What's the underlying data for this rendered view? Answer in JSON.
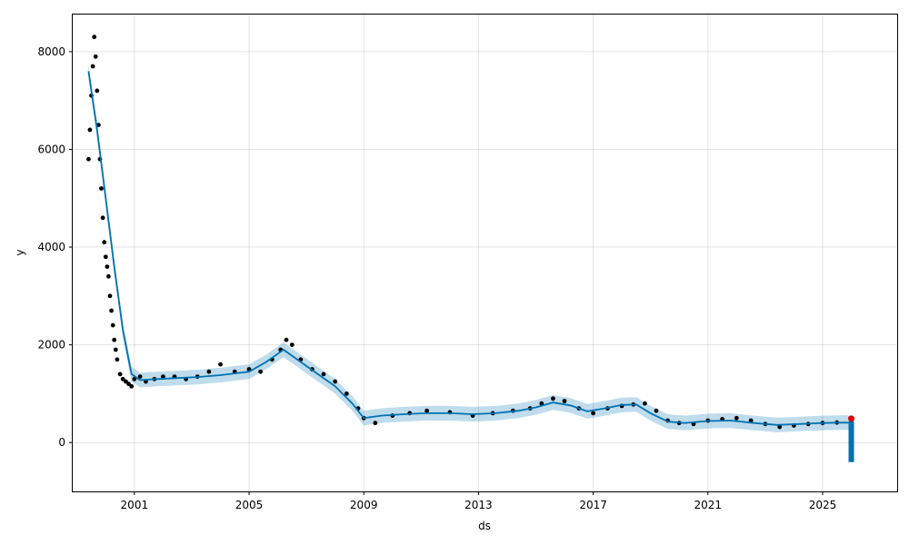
{
  "chart_data": {
    "type": "line",
    "title": "",
    "xlabel": "ds",
    "ylabel": "y",
    "x_tick_labels": [
      "2001",
      "2005",
      "2009",
      "2013",
      "2017",
      "2021",
      "2025"
    ],
    "x_ticks": [
      2001,
      2005,
      2009,
      2013,
      2017,
      2021,
      2025
    ],
    "y_tick_labels": [
      "0",
      "2000",
      "4000",
      "6000",
      "8000"
    ],
    "y_ticks": [
      0,
      2000,
      4000,
      6000,
      8000
    ],
    "xlim": [
      1998.85,
      2027.6
    ],
    "ylim": [
      -1000,
      8760
    ],
    "grid": true,
    "colors": {
      "observed": "#000000",
      "forecast": "#0072B2",
      "interval": "#0072B2",
      "highlight": "#e00000"
    },
    "series": [
      {
        "role": "observed",
        "style": "points",
        "x": [
          1999.4,
          1999.45,
          1999.5,
          1999.55,
          1999.6,
          1999.65,
          1999.7,
          1999.75,
          1999.8,
          1999.85,
          1999.9,
          1999.95,
          2000.0,
          2000.05,
          2000.1,
          2000.15,
          2000.2,
          2000.25,
          2000.3,
          2000.35,
          2000.4,
          2000.5,
          2000.6,
          2000.7,
          2000.8,
          2000.9,
          2001.0,
          2001.2,
          2001.4,
          2001.7,
          2002.0,
          2002.4,
          2002.8,
          2003.2,
          2003.6,
          2004.0,
          2004.5,
          2005.0,
          2005.4,
          2005.8,
          2006.1,
          2006.3,
          2006.5,
          2006.8,
          2007.2,
          2007.6,
          2008.0,
          2008.4,
          2008.8,
          2009.0,
          2009.4,
          2010.0,
          2010.6,
          2011.2,
          2012.0,
          2012.8,
          2013.5,
          2014.2,
          2014.8,
          2015.2,
          2015.6,
          2016.0,
          2016.5,
          2017.0,
          2017.5,
          2018.0,
          2018.4,
          2018.8,
          2019.2,
          2019.6,
          2020.0,
          2020.5,
          2021.0,
          2021.5,
          2022.0,
          2022.5,
          2023.0,
          2023.5,
          2024.0,
          2024.5,
          2025.0,
          2025.5,
          2026.0
        ],
        "y": [
          5800,
          6400,
          7100,
          7700,
          8300,
          7900,
          7200,
          6500,
          5800,
          5200,
          4600,
          4100,
          3800,
          3600,
          3400,
          3000,
          2700,
          2400,
          2100,
          1900,
          1700,
          1400,
          1300,
          1250,
          1200,
          1150,
          1300,
          1350,
          1250,
          1300,
          1350,
          1350,
          1300,
          1350,
          1450,
          1600,
          1450,
          1500,
          1450,
          1700,
          1900,
          2100,
          2000,
          1700,
          1500,
          1400,
          1250,
          1000,
          700,
          500,
          400,
          550,
          600,
          650,
          620,
          550,
          600,
          650,
          700,
          800,
          900,
          850,
          700,
          600,
          700,
          750,
          780,
          800,
          650,
          450,
          400,
          380,
          450,
          480,
          500,
          450,
          380,
          320,
          350,
          380,
          400,
          410,
          420
        ]
      },
      {
        "role": "forecast",
        "style": "line",
        "x": [
          1999.4,
          1999.7,
          2000.0,
          2000.3,
          2000.6,
          2000.9,
          2001.2,
          2001.8,
          2002.5,
          2003.2,
          2004.0,
          2005.0,
          2005.6,
          2006.2,
          2006.8,
          2007.4,
          2008.0,
          2008.6,
          2009.0,
          2009.6,
          2010.4,
          2011.2,
          2012.0,
          2012.8,
          2013.6,
          2014.4,
          2015.0,
          2015.6,
          2016.2,
          2016.8,
          2017.4,
          2018.0,
          2018.5,
          2019.0,
          2019.6,
          2020.2,
          2021.0,
          2021.8,
          2022.6,
          2023.4,
          2024.2,
          2025.0,
          2025.8,
          2026.0,
          2026.0
        ],
        "y": [
          7600,
          6400,
          5000,
          3600,
          2300,
          1400,
          1280,
          1300,
          1320,
          1340,
          1380,
          1450,
          1650,
          1900,
          1650,
          1400,
          1150,
          800,
          500,
          550,
          580,
          600,
          600,
          580,
          600,
          650,
          720,
          820,
          760,
          640,
          700,
          770,
          780,
          600,
          430,
          400,
          440,
          450,
          400,
          360,
          380,
          400,
          410,
          400,
          -350
        ],
        "upper": [
          7750,
          6550,
          5150,
          3750,
          2450,
          1550,
          1430,
          1450,
          1470,
          1490,
          1530,
          1600,
          1800,
          2050,
          1800,
          1550,
          1300,
          950,
          650,
          700,
          730,
          750,
          750,
          730,
          750,
          800,
          870,
          970,
          910,
          790,
          850,
          920,
          930,
          750,
          580,
          550,
          590,
          600,
          550,
          510,
          530,
          550,
          560,
          550,
          -200
        ],
        "lower": [
          7450,
          6250,
          4850,
          3450,
          2150,
          1250,
          1130,
          1150,
          1170,
          1190,
          1230,
          1300,
          1500,
          1750,
          1500,
          1250,
          1000,
          650,
          350,
          400,
          430,
          450,
          450,
          430,
          450,
          500,
          570,
          670,
          610,
          490,
          550,
          620,
          630,
          450,
          280,
          250,
          290,
          300,
          250,
          210,
          230,
          250,
          260,
          250,
          -500
        ]
      },
      {
        "role": "highlight",
        "style": "point",
        "x": [
          2026.0
        ],
        "y": [
          490
        ]
      }
    ]
  }
}
